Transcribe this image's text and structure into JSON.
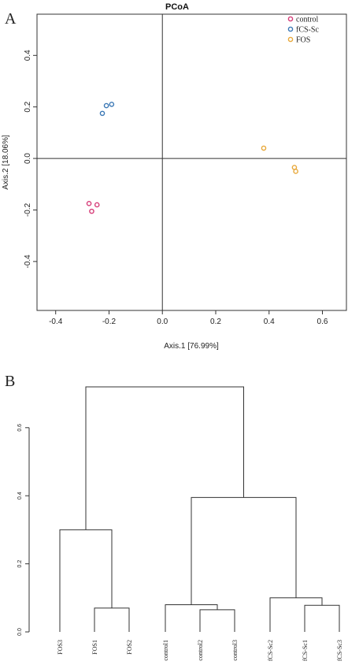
{
  "panel_a": {
    "letter": "A"
  },
  "panel_b": {
    "letter": "B"
  },
  "chart_data": [
    {
      "type": "scatter",
      "title": "PCoA",
      "xlabel": "Axis.1  [76.99%]",
      "ylabel": "Axis.2  [18.06%]",
      "xlim": [
        -0.47,
        0.69
      ],
      "ylim": [
        -0.59,
        0.56
      ],
      "x_ticks": [
        "-0.4",
        "-0.2",
        "0.0",
        "0.2",
        "0.4",
        "0.6"
      ],
      "y_ticks": [
        "-0.4",
        "-0.2",
        "0.0",
        "0.2",
        "0.4"
      ],
      "grid": false,
      "reference_lines": {
        "x": 0,
        "y": 0
      },
      "legend_position": "top-right",
      "series": [
        {
          "name": "control",
          "color": "#d63c78",
          "x": [
            -0.275,
            -0.245,
            -0.265
          ],
          "y": [
            -0.175,
            -0.18,
            -0.205
          ]
        },
        {
          "name": "fCS-Sc",
          "color": "#3b78b5",
          "x": [
            -0.21,
            -0.19,
            -0.225
          ],
          "y": [
            0.205,
            0.21,
            0.175
          ]
        },
        {
          "name": "FOS",
          "color": "#e8a83a",
          "x": [
            0.38,
            0.495,
            0.5
          ],
          "y": [
            0.04,
            -0.035,
            -0.05
          ]
        }
      ]
    },
    {
      "type": "dendrogram",
      "y_ticks": [
        "0.0",
        "0.2",
        "0.4",
        "0.6"
      ],
      "ylim": [
        0,
        0.75
      ],
      "leaves": [
        "FOS3",
        "FOS1",
        "FOS2",
        "control1",
        "control2",
        "control3",
        "fCS-Sc2",
        "fCS-Sc1",
        "fCS-Sc3"
      ],
      "merges": [
        {
          "label": "FOS1+FOS2",
          "height": 0.07
        },
        {
          "label": "FOS3+(FOS1,FOS2)",
          "height": 0.3
        },
        {
          "label": "control2+control3",
          "height": 0.065
        },
        {
          "label": "control1+(control2,control3)",
          "height": 0.08
        },
        {
          "label": "fCS-Sc1+fCS-Sc3",
          "height": 0.078
        },
        {
          "label": "fCS-Sc2+(fCS-Sc1,fCS-Sc3)",
          "height": 0.1
        },
        {
          "label": "control+fCS-Sc",
          "height": 0.395
        },
        {
          "label": "root",
          "height": 0.72
        }
      ]
    }
  ]
}
